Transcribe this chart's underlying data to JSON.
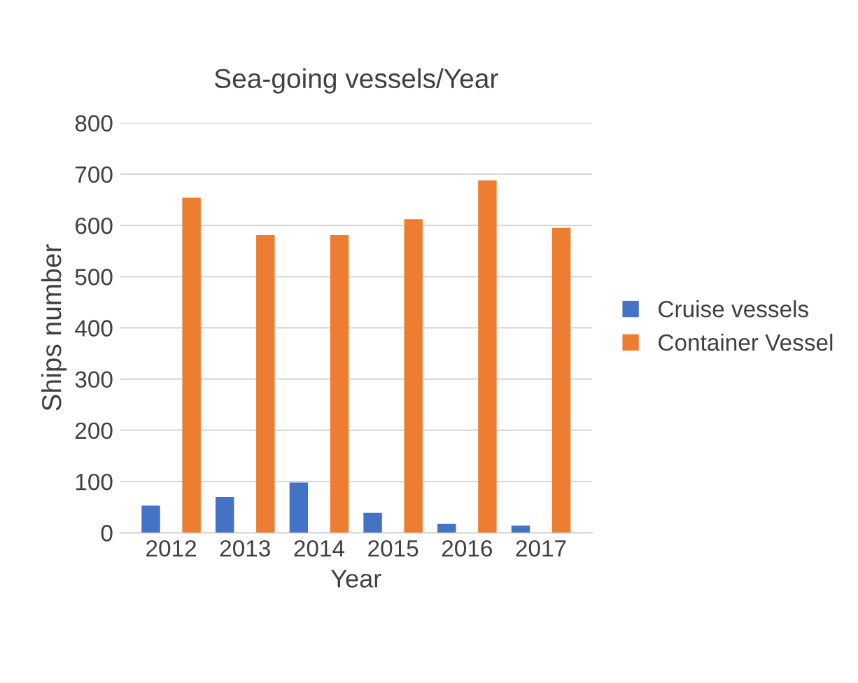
{
  "chart_data": {
    "type": "bar",
    "title": "Sea-going vessels/Year",
    "xlabel": "Year",
    "ylabel": "Ships number",
    "categories": [
      "2012",
      "2013",
      "2014",
      "2015",
      "2016",
      "2017"
    ],
    "series": [
      {
        "name": "Cruise vessels",
        "color": "#4472c4",
        "values": [
          53,
          70,
          98,
          39,
          17,
          14
        ]
      },
      {
        "name": "Container Vessel",
        "color": "#ed7d31",
        "values": [
          654,
          581,
          581,
          612,
          688,
          595
        ]
      }
    ],
    "ylim": [
      0,
      800
    ],
    "yticks": [
      0,
      100,
      200,
      300,
      400,
      500,
      600,
      700,
      800
    ],
    "grid": "y",
    "legend": "right"
  }
}
